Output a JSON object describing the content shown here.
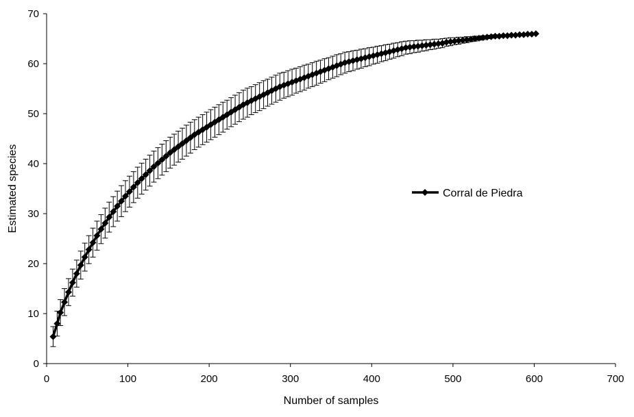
{
  "chart_data": {
    "type": "line",
    "title": "",
    "xlabel": "Number of samples",
    "ylabel": "Estimated species",
    "xlim": [
      0,
      700
    ],
    "ylim": [
      0,
      70
    ],
    "x_ticks": [
      "0",
      "100",
      "200",
      "300",
      "400",
      "500",
      "600",
      "700"
    ],
    "y_ticks": [
      "0",
      "10",
      "20",
      "30",
      "40",
      "50",
      "60",
      "70"
    ],
    "grid": false,
    "legend_position": "right",
    "marker": "diamond",
    "error_bars": true,
    "series": [
      {
        "name": "Corral de Piedra",
        "color": "#000000",
        "x": [
          8,
          13,
          17,
          22,
          27,
          32,
          37,
          42,
          47,
          52,
          57,
          62,
          67,
          72,
          77,
          82,
          87,
          92,
          97,
          102,
          107,
          112,
          117,
          122,
          127,
          132,
          137,
          142,
          147,
          152,
          157,
          162,
          167,
          172,
          177,
          182,
          187,
          192,
          197,
          202,
          207,
          212,
          217,
          222,
          227,
          232,
          237,
          242,
          247,
          252,
          257,
          262,
          267,
          272,
          277,
          282,
          287,
          292,
          297,
          302,
          307,
          312,
          317,
          322,
          327,
          332,
          337,
          342,
          347,
          352,
          357,
          362,
          367,
          372,
          377,
          382,
          387,
          392,
          397,
          402,
          407,
          412,
          417,
          422,
          427,
          432,
          437,
          442,
          447,
          452,
          457,
          462,
          467,
          472,
          477,
          482,
          487,
          492,
          497,
          502,
          507,
          512,
          517,
          522,
          527,
          532,
          537,
          542,
          547,
          552,
          557,
          562,
          567,
          572,
          577,
          582,
          587,
          592,
          597,
          602
        ],
        "y": [
          5.4,
          8.0,
          10.2,
          12.3,
          14.3,
          16.2,
          18.0,
          19.7,
          21.3,
          22.8,
          24.2,
          25.6,
          26.9,
          28.1,
          29.3,
          30.4,
          31.5,
          32.5,
          33.5,
          34.4,
          35.3,
          36.2,
          37.0,
          37.8,
          38.6,
          39.4,
          40.1,
          40.8,
          41.5,
          42.2,
          42.8,
          43.4,
          44.0,
          44.6,
          45.2,
          45.8,
          46.3,
          46.8,
          47.3,
          47.8,
          48.3,
          48.8,
          49.3,
          49.8,
          50.3,
          50.8,
          51.3,
          51.8,
          52.2,
          52.6,
          53.0,
          53.4,
          53.8,
          54.2,
          54.6,
          55.0,
          55.4,
          55.7,
          56.0,
          56.3,
          56.6,
          56.9,
          57.2,
          57.5,
          57.8,
          58.1,
          58.4,
          58.7,
          59.0,
          59.3,
          59.6,
          59.9,
          60.2,
          60.4,
          60.6,
          60.8,
          61.0,
          61.2,
          61.4,
          61.6,
          61.8,
          62.0,
          62.2,
          62.4,
          62.6,
          62.8,
          63.0,
          63.2,
          63.3,
          63.4,
          63.5,
          63.6,
          63.7,
          63.8,
          63.9,
          64.0,
          64.1,
          64.3,
          64.4,
          64.5,
          64.6,
          64.7,
          64.8,
          64.9,
          65.0,
          65.1,
          65.2,
          65.3,
          65.4,
          65.5,
          65.5,
          65.6,
          65.6,
          65.7,
          65.7,
          65.8,
          65.8,
          65.9,
          65.9,
          66.0
        ],
        "error": [
          2.0,
          2.5,
          2.6,
          2.7,
          2.7,
          2.7,
          2.7,
          2.8,
          2.8,
          2.8,
          2.9,
          2.9,
          2.9,
          3.0,
          3.0,
          3.0,
          3.0,
          3.1,
          3.1,
          3.1,
          3.1,
          3.1,
          3.1,
          3.1,
          3.1,
          3.1,
          3.1,
          3.1,
          3.1,
          3.1,
          3.1,
          3.1,
          3.1,
          3.1,
          3.1,
          3.0,
          3.0,
          3.0,
          3.0,
          3.0,
          3.0,
          3.0,
          3.0,
          2.9,
          2.9,
          2.9,
          2.9,
          2.9,
          2.9,
          2.8,
          2.8,
          2.8,
          2.8,
          2.7,
          2.7,
          2.7,
          2.7,
          2.6,
          2.6,
          2.6,
          2.5,
          2.5,
          2.5,
          2.4,
          2.4,
          2.4,
          2.3,
          2.3,
          2.2,
          2.2,
          2.2,
          2.1,
          2.1,
          2.0,
          2.0,
          1.9,
          1.9,
          1.8,
          1.8,
          1.7,
          1.7,
          1.6,
          1.6,
          1.5,
          1.5,
          1.4,
          1.4,
          1.3,
          1.3,
          1.2,
          1.2,
          1.1,
          1.1,
          1.0,
          1.0,
          0.9,
          0.9,
          0.8,
          0.8,
          0.7,
          0.7,
          0.6,
          0.6,
          0.5,
          0.5,
          0.4,
          0.4,
          0.3,
          0.3,
          0.3,
          0.2,
          0.2,
          0.2,
          0.2,
          0.1,
          0.1,
          0.1,
          0.1,
          0.1,
          0.1
        ]
      }
    ]
  }
}
